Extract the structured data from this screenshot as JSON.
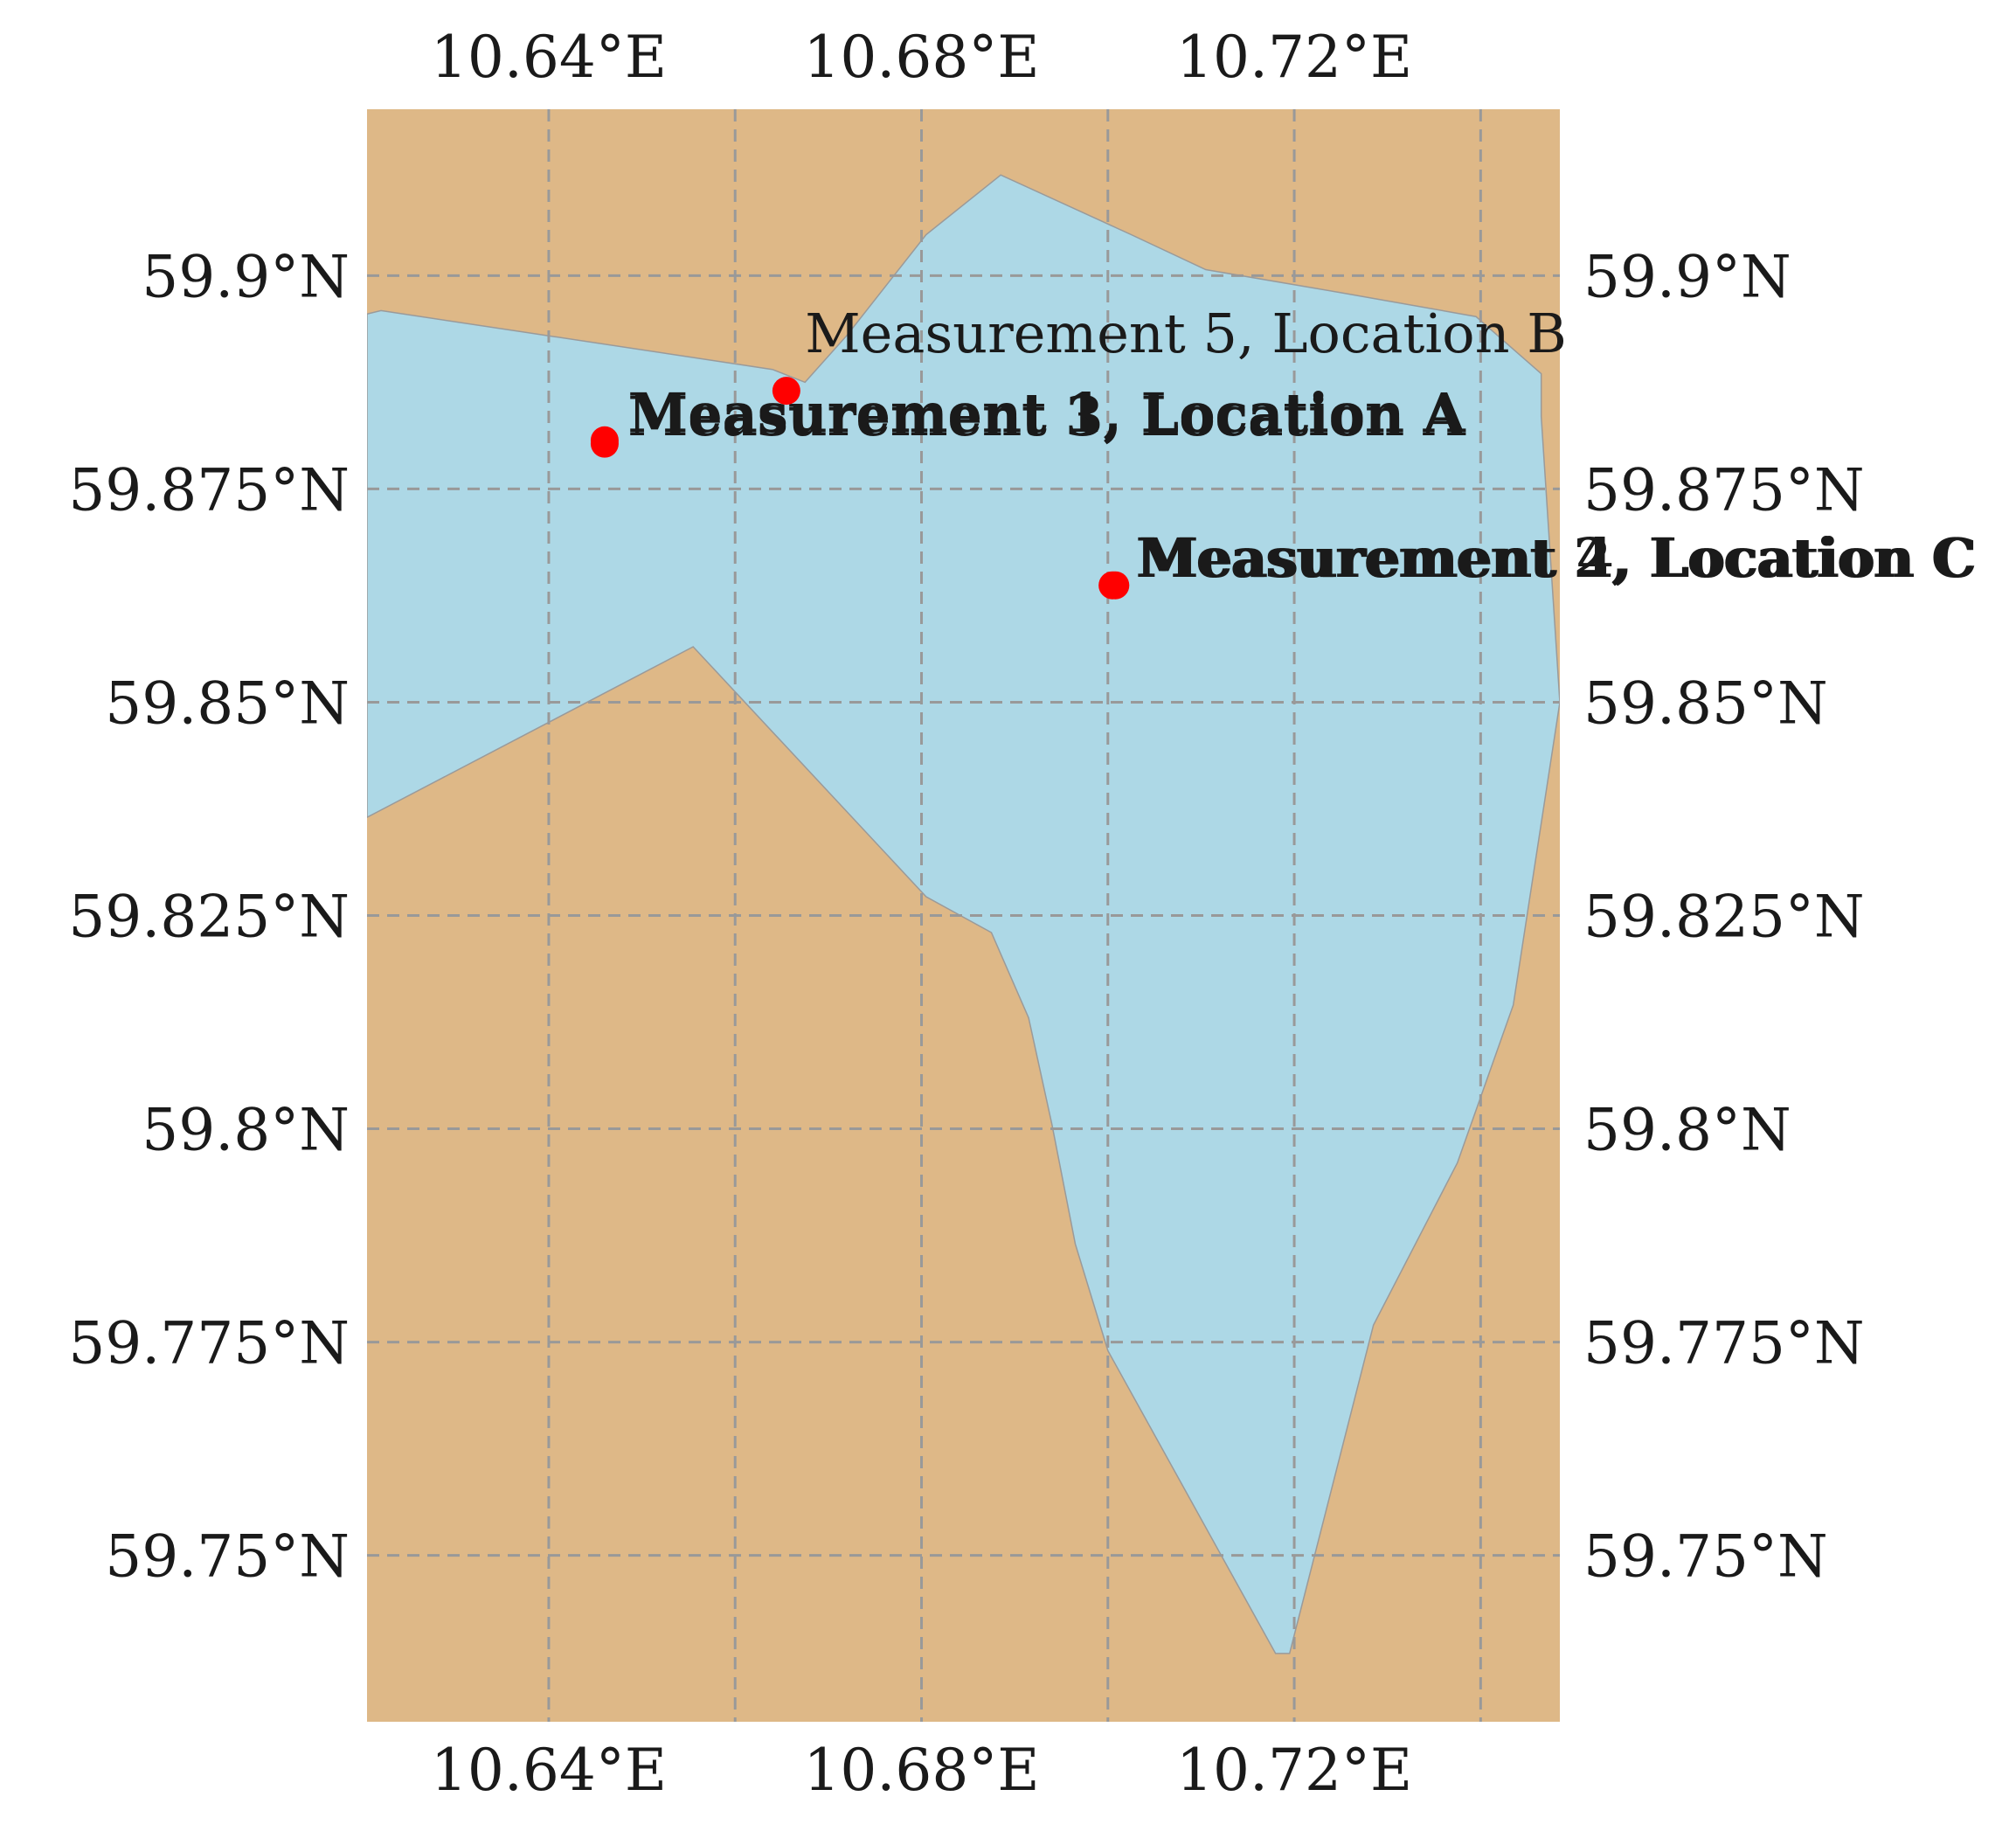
{
  "map": {
    "colors": {
      "land": "#deb887",
      "water": "#add8e6",
      "coast_edge": "#9a9a9a",
      "marker": "#ff0000",
      "grid": "#999999"
    },
    "extent": {
      "lon_min": 10.6205,
      "lon_max": 10.7485,
      "lat_min": 59.7305,
      "lat_max": 59.9195
    },
    "x_ticks": [
      {
        "value": 10.64,
        "label": "10.64°E"
      },
      {
        "value": 10.68,
        "label": "10.68°E"
      },
      {
        "value": 10.72,
        "label": "10.72°E"
      }
    ],
    "grid_lons": [
      10.64,
      10.66,
      10.68,
      10.7,
      10.72,
      10.74
    ],
    "y_ticks": [
      {
        "value": 59.9,
        "label": "59.9°N"
      },
      {
        "value": 59.875,
        "label": "59.875°N"
      },
      {
        "value": 59.85,
        "label": "59.85°N"
      },
      {
        "value": 59.825,
        "label": "59.825°N"
      },
      {
        "value": 59.8,
        "label": "59.8°N"
      },
      {
        "value": 59.775,
        "label": "59.775°N"
      },
      {
        "value": 59.75,
        "label": "59.75°N"
      }
    ],
    "water_outline": [
      [
        10.6205,
        59.8955
      ],
      [
        10.622,
        59.8959
      ],
      [
        10.664,
        59.889
      ],
      [
        10.6675,
        59.8875
      ],
      [
        10.672,
        59.893
      ],
      [
        10.6805,
        59.9048
      ],
      [
        10.6885,
        59.9118
      ],
      [
        10.7025,
        59.9048
      ],
      [
        10.7105,
        59.9007
      ],
      [
        10.725,
        59.898
      ],
      [
        10.7395,
        59.8952
      ],
      [
        10.7465,
        59.8885
      ],
      [
        10.7465,
        59.8835
      ],
      [
        10.7485,
        59.85
      ],
      [
        10.7435,
        59.8145
      ],
      [
        10.7375,
        59.796
      ],
      [
        10.7285,
        59.777
      ],
      [
        10.7195,
        59.7385
      ],
      [
        10.718,
        59.7385
      ],
      [
        10.7,
        59.774
      ],
      [
        10.6965,
        59.7865
      ],
      [
        10.694,
        59.8005
      ],
      [
        10.6915,
        59.813
      ],
      [
        10.6875,
        59.823
      ],
      [
        10.6805,
        59.8272
      ],
      [
        10.6555,
        59.8565
      ],
      [
        10.6205,
        59.8365
      ]
    ],
    "markers": [
      {
        "name": "Measurement 1",
        "location": "Location A",
        "lon": 10.646,
        "lat": 59.8807,
        "weight": "bold",
        "label_dx": 0.0025,
        "label_dy": 0.001
      },
      {
        "name": "Measurement 2",
        "location": "Location C",
        "lon": 10.7005,
        "lat": 59.8637,
        "weight": "bold",
        "label_dx": 0.0025,
        "label_dy": 0.001
      },
      {
        "name": "Measurement 3",
        "location": "Location A",
        "lon": 10.646,
        "lat": 59.8803,
        "weight": "bold",
        "label_dx": 0.0025,
        "label_dy": 0.001
      },
      {
        "name": "Measurement 4",
        "location": "Location C",
        "lon": 10.7008,
        "lat": 59.8637,
        "weight": "bold",
        "label_dx": 0.0025,
        "label_dy": 0.001
      },
      {
        "name": "Measurement 5",
        "location": "Location B",
        "lon": 10.6655,
        "lat": 59.8865,
        "weight": "normal",
        "label_dx": 0.002,
        "label_dy": 0.0045
      }
    ]
  }
}
